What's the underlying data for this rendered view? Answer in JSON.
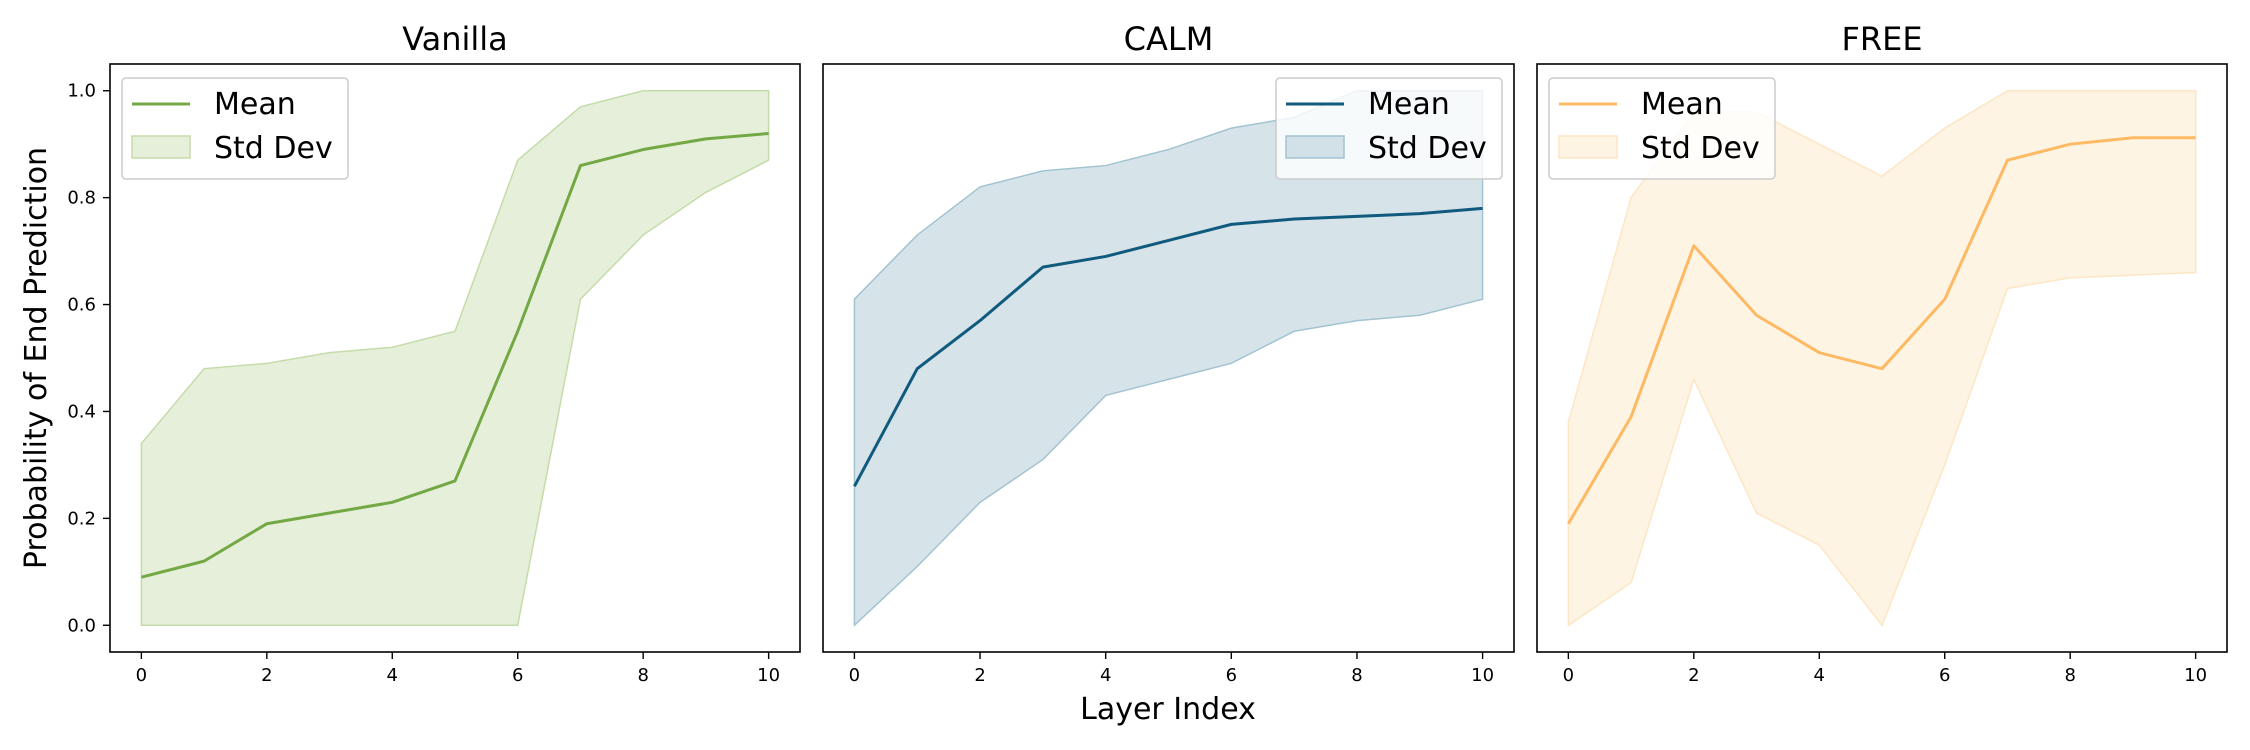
{
  "figure": {
    "xlabel": "Layer Index",
    "ylabel": "Probability of End Prediction"
  },
  "chart_data": [
    {
      "type": "line",
      "title": "Vanilla",
      "xlabel": "Layer Index",
      "ylabel": "Probability of End Prediction",
      "x": [
        0,
        1,
        2,
        3,
        4,
        5,
        6,
        7,
        8,
        9,
        10
      ],
      "series": [
        {
          "name": "Mean",
          "values": [
            0.09,
            0.12,
            0.19,
            0.21,
            0.23,
            0.27,
            0.55,
            0.86,
            0.89,
            0.91,
            0.92
          ]
        },
        {
          "name": "Std Dev",
          "lower": [
            0.0,
            0.0,
            0.0,
            0.0,
            0.0,
            0.0,
            0.0,
            0.61,
            0.73,
            0.81,
            0.87
          ],
          "upper": [
            0.34,
            0.48,
            0.49,
            0.51,
            0.52,
            0.55,
            0.87,
            0.97,
            1.0,
            1.0,
            1.0
          ]
        }
      ],
      "xlim": [
        -0.5,
        10.5
      ],
      "ylim": [
        -0.05,
        1.05
      ],
      "xticks": [
        "0",
        "2",
        "4",
        "6",
        "8",
        "10"
      ],
      "yticks": [
        "0.0",
        "0.2",
        "0.4",
        "0.6",
        "0.8",
        "1.0"
      ],
      "legend": "top-left",
      "colors": {
        "line": "#73a845",
        "fill": "#c5dcaa"
      }
    },
    {
      "type": "line",
      "title": "CALM",
      "xlabel": "Layer Index",
      "x": [
        0,
        1,
        2,
        3,
        4,
        5,
        6,
        7,
        8,
        9,
        10
      ],
      "series": [
        {
          "name": "Mean",
          "values": [
            0.26,
            0.48,
            0.57,
            0.67,
            0.69,
            0.72,
            0.75,
            0.76,
            0.765,
            0.77,
            0.78
          ]
        },
        {
          "name": "Std Dev",
          "lower": [
            0.0,
            0.11,
            0.23,
            0.31,
            0.43,
            0.46,
            0.49,
            0.55,
            0.57,
            0.58,
            0.61
          ],
          "upper": [
            0.61,
            0.73,
            0.82,
            0.85,
            0.86,
            0.89,
            0.93,
            0.95,
            1.0,
            1.0,
            1.0
          ]
        }
      ],
      "xlim": [
        -0.5,
        10.5
      ],
      "ylim": [
        -0.05,
        1.05
      ],
      "xticks": [
        "0",
        "2",
        "4",
        "6",
        "8",
        "10"
      ],
      "legend": "top-right",
      "colors": {
        "line": "#105a7e",
        "fill": "#a3c3d1"
      }
    },
    {
      "type": "line",
      "title": "FREE",
      "xlabel": "Layer Index",
      "x": [
        0,
        1,
        2,
        3,
        4,
        5,
        6,
        7,
        8,
        9,
        10
      ],
      "series": [
        {
          "name": "Mean",
          "values": [
            0.19,
            0.39,
            0.71,
            0.58,
            0.51,
            0.48,
            0.61,
            0.87,
            0.9,
            0.912,
            0.912
          ]
        },
        {
          "name": "Std Dev",
          "lower": [
            0.0,
            0.08,
            0.46,
            0.21,
            0.15,
            0.0,
            0.3,
            0.63,
            0.65,
            0.655,
            0.66
          ],
          "upper": [
            0.38,
            0.8,
            0.96,
            0.96,
            0.9,
            0.84,
            0.93,
            1.0,
            1.0,
            1.0,
            1.0
          ]
        }
      ],
      "xlim": [
        -0.5,
        10.5
      ],
      "ylim": [
        -0.05,
        1.05
      ],
      "xticks": [
        "0",
        "2",
        "4",
        "6",
        "8",
        "10"
      ],
      "legend": "top-left",
      "colors": {
        "line": "#fdb963",
        "fill": "#fde6c4"
      }
    }
  ]
}
